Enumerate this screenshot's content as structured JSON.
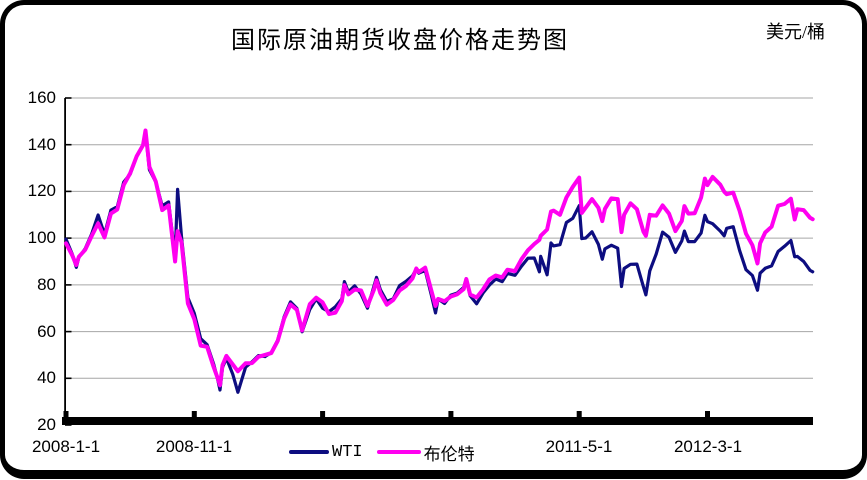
{
  "chart_data": {
    "type": "line",
    "title": "国际原油期货收盘价格走势图",
    "unit_label": "美元/桶",
    "grid": true,
    "legend_position": "bottom",
    "colors": {
      "gridline": "#a6a6a6",
      "axis": "#000000",
      "background": "#ffffff",
      "frame": "#000000"
    },
    "y_axis": {
      "min": 20,
      "max": 160,
      "step": 20,
      "tick_labels": [
        "160",
        "140",
        "120",
        "100",
        "80",
        "60",
        "40",
        "20"
      ]
    },
    "x_axis": {
      "start_date": "2008-1-1",
      "ticks": [
        {
          "month": 0,
          "label": "2008-1-1"
        },
        {
          "month": 10,
          "label": "2008-11-1"
        },
        {
          "month": 20,
          "label": ""
        },
        {
          "month": 30,
          "label": ""
        },
        {
          "month": 40,
          "label": "2011-5-1"
        },
        {
          "month": 50,
          "label": "2012-3-1"
        }
      ]
    },
    "x_months": [
      0,
      0.5,
      0.8,
      1,
      1.5,
      2,
      2.5,
      3,
      3.5,
      4,
      4.5,
      5,
      5.5,
      6,
      6.2,
      6.5,
      7,
      7.5,
      8,
      8.5,
      8.7,
      9,
      9.5,
      10,
      10.5,
      11,
      11.5,
      11.8,
      12,
      12.2,
      12.5,
      13,
      13.4,
      14,
      14.5,
      15,
      15.5,
      16,
      16.5,
      17,
      17.5,
      18,
      18.4,
      19,
      19.5,
      20,
      20.5,
      21,
      21.5,
      21.7,
      22,
      22.5,
      23,
      23.5,
      24,
      24.2,
      24.5,
      25,
      25.5,
      26,
      26.5,
      27,
      27.3,
      27.5,
      28,
      28.5,
      28.8,
      29,
      29.5,
      30,
      30.5,
      31,
      31.2,
      31.5,
      32,
      32.5,
      33,
      33.5,
      34,
      34.4,
      35,
      35.5,
      36,
      36.5,
      36.9,
      37,
      37.5,
      37.8,
      38,
      38.5,
      39,
      39.5,
      40,
      40.2,
      40.5,
      41,
      41.5,
      41.8,
      42,
      42.5,
      43,
      43.3,
      43.5,
      44,
      44.5,
      45,
      45.2,
      45.5,
      46,
      46.5,
      47,
      47.5,
      48,
      48.2,
      48.5,
      49,
      49.5,
      49.8,
      50,
      50.4,
      51,
      51.3,
      51.5,
      52,
      52.5,
      53,
      53.5,
      53.9,
      54.1,
      54.5,
      55,
      55.5,
      56,
      56.5,
      56.8,
      57,
      57.5,
      58,
      58.2
    ],
    "series": [
      {
        "name": "WTI",
        "color": "#0d0d80",
        "values": [
          99.6,
          93.0,
          87.5,
          91.7,
          95.5,
          101.8,
          109.9,
          101.6,
          112.0,
          113.5,
          124.0,
          127.4,
          134.9,
          140.0,
          145.3,
          129.3,
          124.1,
          113.8,
          115.5,
          92.0,
          120.9,
          100.6,
          74.5,
          67.8,
          57.0,
          54.4,
          46.3,
          40.1,
          35.0,
          44.6,
          48.6,
          41.7,
          34.0,
          44.8,
          47.0,
          49.7,
          49.3,
          51.1,
          56.3,
          66.3,
          72.7,
          69.9,
          59.9,
          69.5,
          74.0,
          70.0,
          68.5,
          70.6,
          74.0,
          81.4,
          77.0,
          79.6,
          76.0,
          70.0,
          79.4,
          83.2,
          78.0,
          72.9,
          74.0,
          79.7,
          81.5,
          83.8,
          86.8,
          85.0,
          86.2,
          75.0,
          68.0,
          74.0,
          72.0,
          75.6,
          76.5,
          78.9,
          82.6,
          75.4,
          71.9,
          76.5,
          79.9,
          82.5,
          81.4,
          84.9,
          84.1,
          88.0,
          91.4,
          91.5,
          85.6,
          92.2,
          84.3,
          97.9,
          96.7,
          97.2,
          106.7,
          108.5,
          113.9,
          99.8,
          100.0,
          102.7,
          97.3,
          91.0,
          95.4,
          97.0,
          95.7,
          79.3,
          87.0,
          88.8,
          88.9,
          79.2,
          75.7,
          86.0,
          93.2,
          102.6,
          100.4,
          93.9,
          98.8,
          103.0,
          98.5,
          98.5,
          102.2,
          109.8,
          107.1,
          106.2,
          103.0,
          101.0,
          104.2,
          104.9,
          94.7,
          86.5,
          84.0,
          77.7,
          85.0,
          87.1,
          88.1,
          94.3,
          96.5,
          99.0,
          92.0,
          92.2,
          90.0,
          86.2,
          85.6
        ]
      },
      {
        "name": "布伦特",
        "color": "#ff00f0",
        "values": [
          97.8,
          92.5,
          88.5,
          92.0,
          95.0,
          100.9,
          106.3,
          100.3,
          110.5,
          112.3,
          122.7,
          127.8,
          135.0,
          139.8,
          146.1,
          130.5,
          124.2,
          112.0,
          114.0,
          90.0,
          103.0,
          98.2,
          72.0,
          65.3,
          54.0,
          53.5,
          45.0,
          40.4,
          37.0,
          45.6,
          49.6,
          45.9,
          43.0,
          46.4,
          46.5,
          49.2,
          50.0,
          50.8,
          56.0,
          65.5,
          71.6,
          69.3,
          60.5,
          71.7,
          74.5,
          72.5,
          67.5,
          68.1,
          73.0,
          79.9,
          75.9,
          78.0,
          77.6,
          71.0,
          77.9,
          81.9,
          76.5,
          71.5,
          73.5,
          77.6,
          79.5,
          82.7,
          87.0,
          85.5,
          87.4,
          77.0,
          71.0,
          74.0,
          73.0,
          75.0,
          76.0,
          78.2,
          82.5,
          75.9,
          74.6,
          78.0,
          82.3,
          84.0,
          83.2,
          86.5,
          85.9,
          91.0,
          94.8,
          97.5,
          99.3,
          101.0,
          103.7,
          111.4,
          111.8,
          110.0,
          117.4,
          122.0,
          125.9,
          110.8,
          113.0,
          116.7,
          113.0,
          107.3,
          112.5,
          117.0,
          116.7,
          102.6,
          110.0,
          114.9,
          112.4,
          102.8,
          101.0,
          110.0,
          109.6,
          114.0,
          110.5,
          103.0,
          107.4,
          113.7,
          110.5,
          110.7,
          117.4,
          125.5,
          122.7,
          126.2,
          122.9,
          119.9,
          118.8,
          119.5,
          111.7,
          101.9,
          97.0,
          89.2,
          97.8,
          102.4,
          104.9,
          113.9,
          114.6,
          116.9,
          108.0,
          112.4,
          112.0,
          108.7,
          108.1
        ]
      }
    ]
  }
}
